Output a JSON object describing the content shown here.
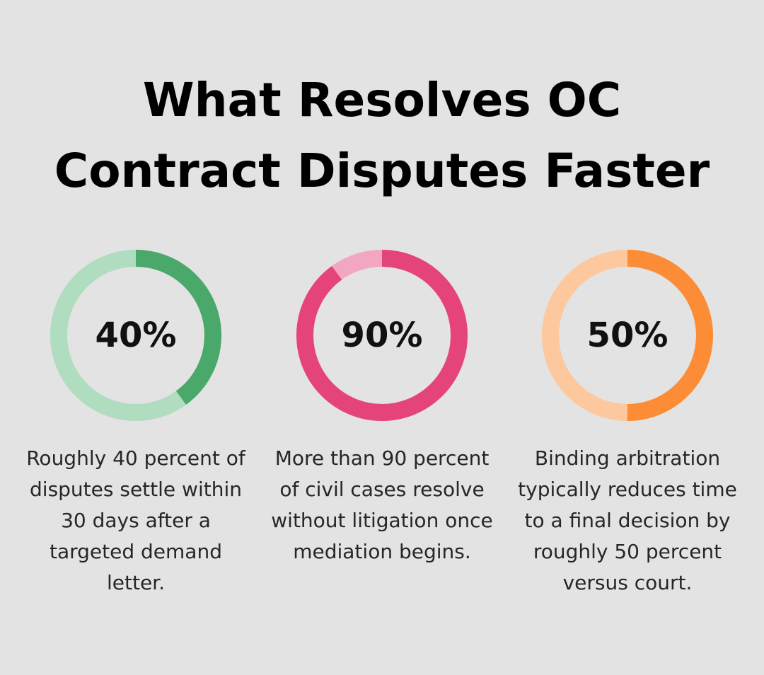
{
  "title": "What Resolves OC Contract Disputes Faster",
  "stats": [
    {
      "value_label": "40%",
      "percent": 40,
      "description": "Roughly 40 percent of disputes settle within 30 days after a targeted demand letter.",
      "colors": {
        "fill": "#4aa86a",
        "track": "#b0dcc0"
      }
    },
    {
      "value_label": "90%",
      "percent": 90,
      "description": "More than 90 percent of civil cases resolve without litigation once mediation begins.",
      "colors": {
        "fill": "#e5447a",
        "track": "#f3a6c1"
      }
    },
    {
      "value_label": "50%",
      "percent": 50,
      "description": "Binding arbitration typically reduces time to a final decision by roughly 50 percent versus court.",
      "colors": {
        "fill": "#fd8c36",
        "track": "#fdc89d"
      }
    }
  ]
}
